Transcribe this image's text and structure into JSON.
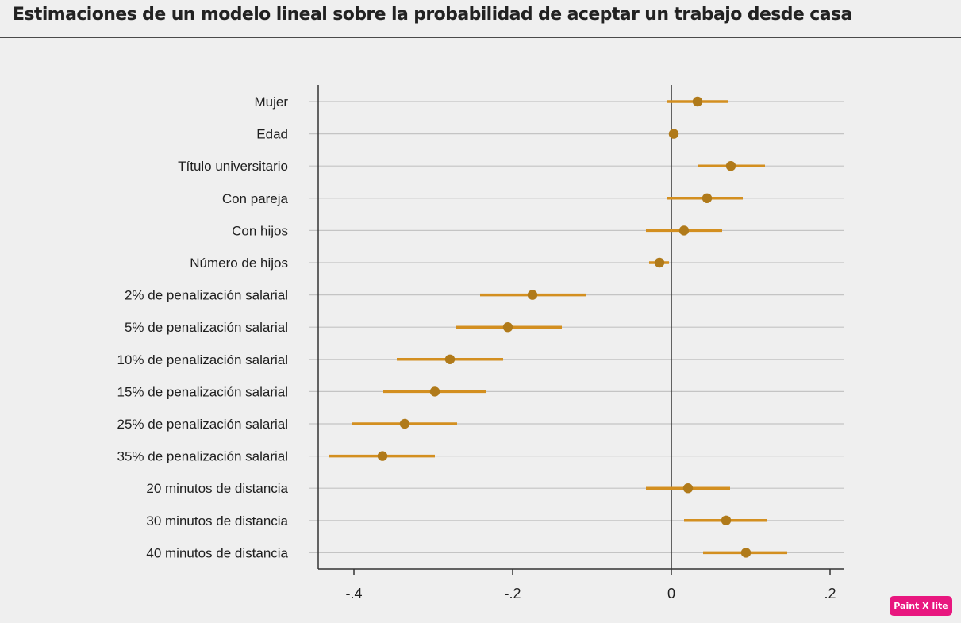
{
  "chart_data": {
    "type": "dot-whisker",
    "title": "Estimaciones de un modelo lineal sobre la probabilidad de aceptar un trabajo desde casa",
    "xlabel": "",
    "ylabel": "",
    "xlim": [
      -0.445,
      0.2
    ],
    "x_ticks": [
      -0.4,
      -0.2,
      0,
      0.2
    ],
    "x_tick_labels": [
      "-.4",
      "-.2",
      "0",
      ".2"
    ],
    "reference_line": 0,
    "grid": true,
    "marker_color": "#b07a1a",
    "interval_color": "#d38f20",
    "categories": [
      "Mujer",
      "Edad",
      "Título universitario",
      "Con pareja",
      "Con hijos",
      "Número de hijos",
      "2% de penalización salarial",
      "5% de penalización salarial",
      "10% de penalización salarial",
      "15% de penalización salarial",
      "25% de penalización salarial",
      "35% de penalización salarial",
      "20 minutos de distancia",
      "30 minutos de distancia",
      "40 minutos de distancia"
    ],
    "estimates": [
      0.033,
      0.003,
      0.075,
      0.045,
      0.016,
      -0.015,
      -0.175,
      -0.206,
      -0.279,
      -0.298,
      -0.336,
      -0.364,
      0.021,
      0.069,
      0.094
    ],
    "ci_low": [
      -0.005,
      0.0,
      0.033,
      -0.005,
      -0.032,
      -0.028,
      -0.241,
      -0.272,
      -0.346,
      -0.363,
      -0.403,
      -0.432,
      -0.032,
      0.016,
      0.04
    ],
    "ci_high": [
      0.071,
      0.006,
      0.118,
      0.09,
      0.064,
      -0.003,
      -0.108,
      -0.138,
      -0.212,
      -0.233,
      -0.27,
      -0.298,
      0.074,
      0.121,
      0.146
    ]
  },
  "watermark": "Paint X lite"
}
